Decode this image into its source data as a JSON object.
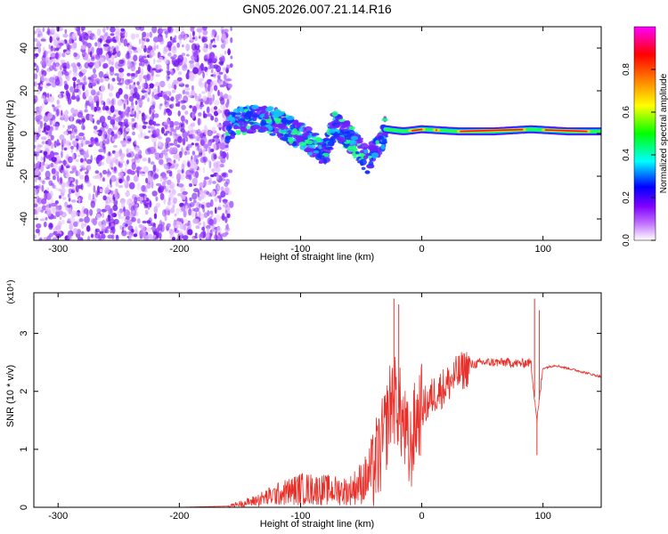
{
  "title": "GN05.2026.007.21.14.R16",
  "chart_data": [
    {
      "type": "heatmap",
      "name": "spectrogram",
      "xlabel": "Height of straight line (km)",
      "ylabel": "Frequency (Hz)",
      "xlim": [
        -320,
        148
      ],
      "ylim": [
        -50,
        50
      ],
      "xticks": [
        -300,
        -200,
        -100,
        0,
        100
      ],
      "xtick_labels": [
        "-300",
        "-200",
        "-100",
        "0",
        "100"
      ],
      "yticks": [
        -40,
        -20,
        0,
        20,
        40
      ],
      "ytick_labels": [
        "-40",
        "-20",
        "0",
        "20",
        "40"
      ],
      "noise_region_x": [
        -320,
        -160
      ],
      "signal_ridge": [
        {
          "x": -162,
          "f": 2
        },
        {
          "x": -150,
          "f": 6
        },
        {
          "x": -130,
          "f": 7
        },
        {
          "x": -115,
          "f": 4
        },
        {
          "x": -105,
          "f": 0
        },
        {
          "x": -95,
          "f": -3
        },
        {
          "x": -80,
          "f": -9
        },
        {
          "x": -72,
          "f": 4
        },
        {
          "x": -62,
          "f": 0
        },
        {
          "x": -55,
          "f": -5
        },
        {
          "x": -45,
          "f": -14
        },
        {
          "x": -35,
          "f": -6
        },
        {
          "x": -30,
          "f": 2
        },
        {
          "x": -15,
          "f": 1
        },
        {
          "x": 0,
          "f": 2
        },
        {
          "x": 30,
          "f": 1
        },
        {
          "x": 60,
          "f": 1
        },
        {
          "x": 90,
          "f": 2
        },
        {
          "x": 120,
          "f": 1
        },
        {
          "x": 148,
          "f": 1
        }
      ],
      "colorbar": {
        "label": "Normalized spectral amplitude",
        "range": [
          0,
          1
        ],
        "ticks": [
          0.0,
          0.2,
          0.4,
          0.6,
          0.8
        ],
        "tick_labels": [
          "0.0",
          "0.2",
          "0.4",
          "0.6",
          "0.8"
        ],
        "colors": [
          "#ffffff",
          "#8000ff",
          "#0000ff",
          "#00ffff",
          "#00ff00",
          "#ffff00",
          "#ff8000",
          "#ff0000",
          "#ff00ff"
        ]
      }
    },
    {
      "type": "line",
      "name": "snr",
      "xlabel": "Height of straight line (km)",
      "ylabel": "SNR (10 * v/v)",
      "y_scale_label": "(x10⁴)",
      "xlim": [
        -320,
        148
      ],
      "ylim": [
        0,
        3.7
      ],
      "xticks": [
        -300,
        -200,
        -100,
        0,
        100
      ],
      "xtick_labels": [
        "-300",
        "-200",
        "-100",
        "0",
        "100"
      ],
      "yticks": [
        0,
        1,
        2,
        3
      ],
      "ytick_labels": [
        "0",
        "1",
        "2",
        "3"
      ],
      "line_color": "#e8302a",
      "series": [
        {
          "name": "SNR",
          "x": [
            -320,
            -200,
            -160,
            -140,
            -120,
            -100,
            -80,
            -60,
            -45,
            -35,
            -30,
            -25,
            -20,
            -15,
            -10,
            -5,
            0,
            5,
            10,
            20,
            30,
            40,
            50,
            60,
            70,
            80,
            90,
            95,
            100,
            110,
            120,
            130,
            148
          ],
          "values": [
            0.0,
            0.0,
            0.02,
            0.1,
            0.22,
            0.32,
            0.3,
            0.28,
            0.5,
            0.9,
            1.3,
            1.9,
            1.8,
            1.4,
            0.9,
            1.5,
            1.7,
            1.8,
            1.95,
            2.1,
            2.3,
            2.45,
            2.5,
            2.5,
            2.5,
            2.48,
            2.5,
            1.5,
            2.4,
            2.45,
            2.4,
            2.35,
            2.25
          ]
        }
      ],
      "spikes": [
        {
          "x": -23,
          "y": 3.6
        },
        {
          "x": -19,
          "y": 3.5
        },
        {
          "x": 93,
          "y": 3.6
        },
        {
          "x": 95,
          "y": 0.9
        },
        {
          "x": 97,
          "y": 3.4
        }
      ]
    }
  ]
}
